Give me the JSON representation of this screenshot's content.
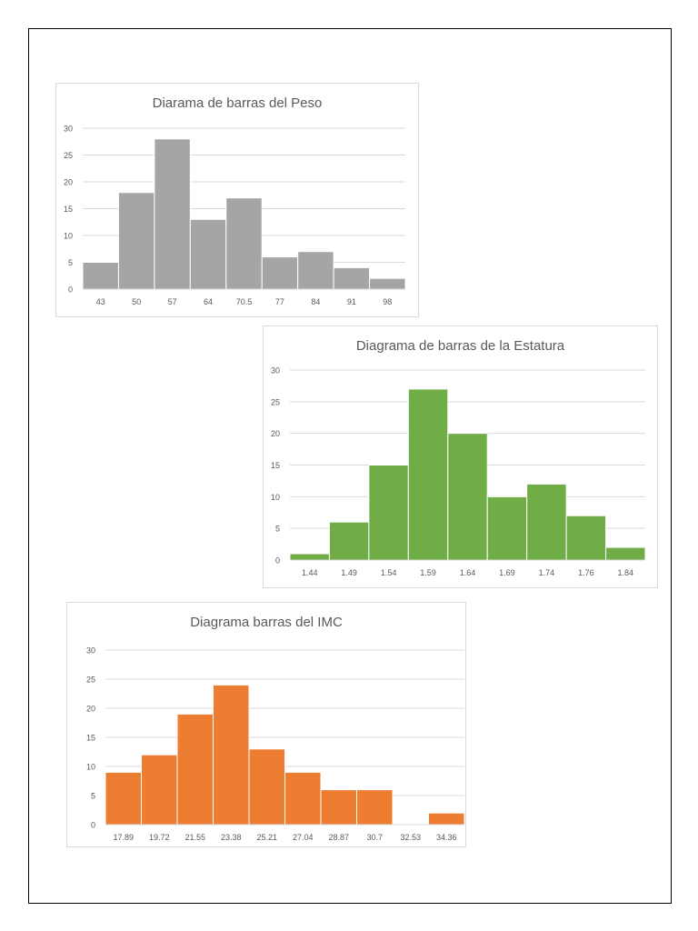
{
  "chart_data": [
    {
      "type": "bar",
      "title": "Diarama de barras del Peso",
      "categories": [
        "43",
        "50",
        "57",
        "64",
        "70.5",
        "77",
        "84",
        "91",
        "98"
      ],
      "values": [
        5,
        18,
        28,
        13,
        17,
        6,
        7,
        4,
        2
      ],
      "ylim": [
        0,
        30
      ],
      "yticks": [
        "0",
        "5",
        "10",
        "15",
        "20",
        "25",
        "30"
      ],
      "grid": true,
      "color": "#a5a5a5",
      "xlabel": "",
      "ylabel": ""
    },
    {
      "type": "bar",
      "title": "Diagrama de barras de la Estatura",
      "categories": [
        "1.44",
        "1.49",
        "1.54",
        "1.59",
        "1.64",
        "1.69",
        "1.74",
        "1.76",
        "1.84"
      ],
      "values": [
        1,
        6,
        15,
        27,
        20,
        10,
        12,
        7,
        2
      ],
      "ylim": [
        0,
        30
      ],
      "yticks": [
        "0",
        "5",
        "10",
        "15",
        "20",
        "25",
        "30"
      ],
      "grid": true,
      "color": "#70ad47",
      "xlabel": "",
      "ylabel": ""
    },
    {
      "type": "bar",
      "title": "Diagrama  barras del IMC",
      "categories": [
        "17.89",
        "19.72",
        "21.55",
        "23.38",
        "25.21",
        "27.04",
        "28.87",
        "30.7",
        "32.53",
        "34.36"
      ],
      "values": [
        9,
        12,
        19,
        24,
        13,
        9,
        6,
        6,
        0,
        2
      ],
      "ylim": [
        0,
        30
      ],
      "yticks": [
        "0",
        "5",
        "10",
        "15",
        "20",
        "25",
        "30"
      ],
      "grid": true,
      "color": "#ed7d31",
      "xlabel": "",
      "ylabel": ""
    }
  ]
}
